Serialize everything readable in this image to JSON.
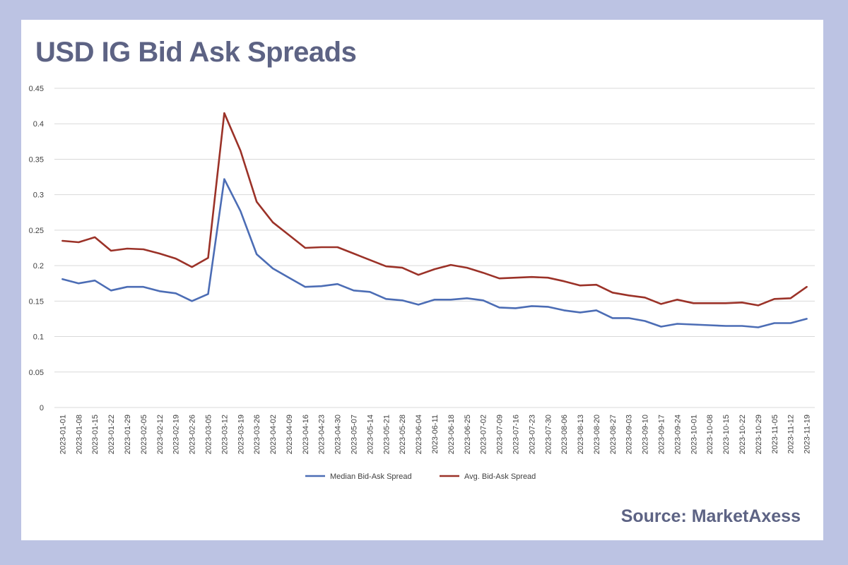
{
  "title": "USD IG Bid Ask Spreads",
  "source": "Source: MarketAxess",
  "colors": {
    "frame": "#bcc3e3",
    "title_text": "#5d6384",
    "median_line": "#4c6db5",
    "avg_line": "#9b3228",
    "gridline": "#d9d9d9"
  },
  "chart_data": {
    "type": "line",
    "title": "",
    "xlabel": "",
    "ylabel": "",
    "ylim": [
      0,
      0.45
    ],
    "yticks": [
      0,
      0.05,
      0.1,
      0.15,
      0.2,
      0.25,
      0.3,
      0.35,
      0.4,
      0.45
    ],
    "ytick_labels": [
      "0",
      "0.05",
      "0.1",
      "0.15",
      "0.2",
      "0.25",
      "0.3",
      "0.35",
      "0.4",
      "0.45"
    ],
    "grid": true,
    "legend_position": "bottom",
    "x": [
      "2023-01-01",
      "2023-01-08",
      "2023-01-15",
      "2023-01-22",
      "2023-01-29",
      "2023-02-05",
      "2023-02-12",
      "2023-02-19",
      "2023-02-26",
      "2023-03-05",
      "2023-03-12",
      "2023-03-19",
      "2023-03-26",
      "2023-04-02",
      "2023-04-09",
      "2023-04-16",
      "2023-04-23",
      "2023-04-30",
      "2023-05-07",
      "2023-05-14",
      "2023-05-21",
      "2023-05-28",
      "2023-06-04",
      "2023-06-11",
      "2023-06-18",
      "2023-06-25",
      "2023-07-02",
      "2023-07-09",
      "2023-07-16",
      "2023-07-23",
      "2023-07-30",
      "2023-08-06",
      "2023-08-13",
      "2023-08-20",
      "2023-08-27",
      "2023-09-03",
      "2023-09-10",
      "2023-09-17",
      "2023-09-24",
      "2023-10-01",
      "2023-10-08",
      "2023-10-15",
      "2023-10-22",
      "2023-10-29",
      "2023-11-05",
      "2023-11-12",
      "2023-11-19"
    ],
    "series": [
      {
        "name": "Median Bid-Ask Spread",
        "color": "#4c6db5",
        "values": [
          0.181,
          0.175,
          0.179,
          0.165,
          0.17,
          0.17,
          0.164,
          0.161,
          0.15,
          0.16,
          0.322,
          0.277,
          0.216,
          0.196,
          0.183,
          0.17,
          0.171,
          0.174,
          0.165,
          0.163,
          0.153,
          0.151,
          0.145,
          0.152,
          0.152,
          0.154,
          0.151,
          0.141,
          0.14,
          0.143,
          0.142,
          0.137,
          0.134,
          0.137,
          0.126,
          0.126,
          0.122,
          0.114,
          0.118,
          0.117,
          0.116,
          0.115,
          0.115,
          0.113,
          0.119,
          0.119,
          0.125
        ]
      },
      {
        "name": "Avg. Bid-Ask Spread",
        "color": "#9b3228",
        "values": [
          0.235,
          0.233,
          0.24,
          0.221,
          0.224,
          0.223,
          0.217,
          0.21,
          0.198,
          0.211,
          0.415,
          0.362,
          0.29,
          0.261,
          0.243,
          0.225,
          0.226,
          0.226,
          0.217,
          0.208,
          0.199,
          0.197,
          0.187,
          0.195,
          0.201,
          0.197,
          0.19,
          0.182,
          0.183,
          0.184,
          0.183,
          0.178,
          0.172,
          0.173,
          0.162,
          0.158,
          0.155,
          0.146,
          0.152,
          0.147,
          0.147,
          0.147,
          0.148,
          0.144,
          0.153,
          0.154,
          0.17
        ]
      }
    ]
  }
}
